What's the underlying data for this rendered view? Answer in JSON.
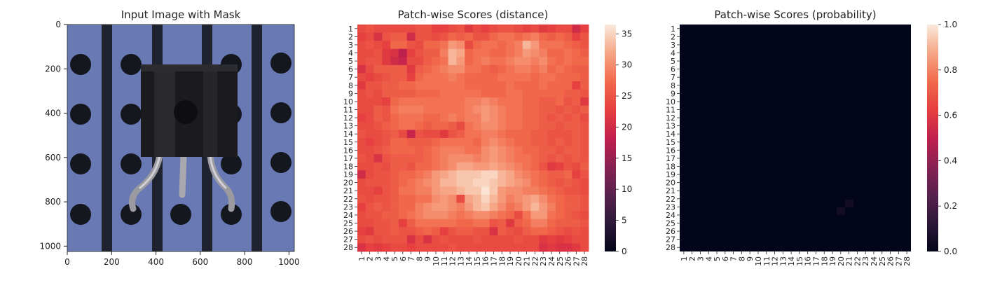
{
  "chart_data": [
    {
      "type": "image",
      "title": "Input Image with Mask",
      "xlim": [
        0,
        1024
      ],
      "ylim": [
        1024,
        0
      ],
      "x_ticks": [
        0,
        200,
        400,
        600,
        800,
        1000
      ],
      "y_ticks": [
        0,
        200,
        400,
        600,
        800,
        1000
      ]
    },
    {
      "type": "heatmap",
      "title": "Patch-wise Scores (distance)",
      "rows": [
        "1",
        "2",
        "3",
        "4",
        "5",
        "6",
        "7",
        "8",
        "9",
        "10",
        "11",
        "12",
        "13",
        "14",
        "15",
        "16",
        "17",
        "18",
        "19",
        "20",
        "21",
        "22",
        "23",
        "24",
        "25",
        "26",
        "27",
        "28"
      ],
      "cols": [
        "1",
        "2",
        "3",
        "4",
        "5",
        "6",
        "7",
        "8",
        "9",
        "10",
        "11",
        "12",
        "13",
        "14",
        "15",
        "16",
        "17",
        "18",
        "19",
        "20",
        "21",
        "22",
        "23",
        "24",
        "25",
        "26",
        "27",
        "28"
      ],
      "colorbar": {
        "min": 0,
        "max": 36.5,
        "ticks": [
          0,
          5,
          10,
          15,
          20,
          25,
          30,
          35
        ]
      },
      "colormap": "rocket",
      "values_note": "28x28 values in range ~17–36, brightest patches in centre (rows 17–23, cols 12–17)",
      "values": [
        [
          24,
          25,
          24,
          24,
          24,
          24,
          24,
          25,
          25,
          23,
          23,
          24,
          25,
          22,
          24,
          23,
          24,
          25,
          25,
          24,
          23,
          24,
          22,
          23,
          24,
          24,
          20,
          23
        ],
        [
          23,
          24,
          21,
          25,
          26,
          26,
          20,
          25,
          25,
          24,
          25,
          27,
          26,
          27,
          25,
          25,
          27,
          28,
          28,
          27,
          28,
          29,
          27,
          26,
          27,
          26,
          23,
          25
        ],
        [
          24,
          25,
          24,
          23,
          27,
          27,
          25,
          24,
          27,
          27,
          28,
          31,
          30,
          24,
          27,
          28,
          28,
          27,
          28,
          29,
          33,
          31,
          28,
          28,
          28,
          27,
          26,
          25
        ],
        [
          24,
          24,
          25,
          22,
          21,
          18,
          23,
          25,
          26,
          26,
          29,
          33,
          32,
          27,
          28,
          28,
          27,
          27,
          28,
          29,
          31,
          30,
          29,
          27,
          27,
          28,
          27,
          26
        ],
        [
          24,
          25,
          25,
          22,
          20,
          19,
          24,
          24,
          26,
          27,
          28,
          33,
          31,
          27,
          28,
          29,
          28,
          28,
          29,
          30,
          30,
          29,
          30,
          28,
          27,
          28,
          27,
          27
        ],
        [
          21,
          24,
          26,
          26,
          26,
          26,
          22,
          26,
          27,
          28,
          29,
          30,
          30,
          28,
          28,
          27,
          26,
          27,
          28,
          29,
          29,
          28,
          29,
          27,
          28,
          27,
          26,
          26
        ],
        [
          24,
          23,
          24,
          25,
          26,
          26,
          23,
          27,
          28,
          28,
          28,
          29,
          28,
          27,
          27,
          27,
          27,
          28,
          28,
          28,
          28,
          27,
          28,
          28,
          27,
          27,
          27,
          26
        ],
        [
          22,
          25,
          25,
          26,
          26,
          27,
          27,
          28,
          28,
          28,
          28,
          28,
          28,
          27,
          27,
          27,
          27,
          27,
          28,
          27,
          27,
          27,
          28,
          27,
          27,
          27,
          23,
          26
        ],
        [
          24,
          25,
          24,
          26,
          26,
          26,
          26,
          27,
          27,
          27,
          28,
          28,
          28,
          28,
          28,
          27,
          27,
          27,
          28,
          28,
          27,
          27,
          27,
          27,
          27,
          26,
          26,
          25
        ],
        [
          24,
          24,
          24,
          23,
          27,
          28,
          28,
          28,
          28,
          28,
          28,
          28,
          28,
          29,
          29,
          30,
          29,
          28,
          28,
          28,
          27,
          27,
          26,
          26,
          27,
          25,
          26,
          22
        ],
        [
          24,
          24,
          26,
          25,
          28,
          29,
          29,
          29,
          28,
          28,
          28,
          28,
          28,
          29,
          30,
          31,
          30,
          29,
          28,
          28,
          27,
          27,
          26,
          26,
          25,
          26,
          25,
          26
        ],
        [
          23,
          24,
          26,
          25,
          27,
          28,
          28,
          28,
          27,
          27,
          28,
          29,
          28,
          29,
          29,
          31,
          30,
          29,
          28,
          28,
          27,
          27,
          26,
          25,
          26,
          25,
          26,
          24
        ],
        [
          24,
          24,
          25,
          26,
          27,
          28,
          28,
          27,
          26,
          27,
          27,
          26,
          24,
          28,
          29,
          30,
          30,
          29,
          28,
          28,
          27,
          27,
          26,
          26,
          25,
          26,
          26,
          25
        ],
        [
          25,
          24,
          24,
          25,
          26,
          24,
          19,
          25,
          24,
          24,
          22,
          25,
          26,
          28,
          28,
          29,
          29,
          28,
          27,
          27,
          27,
          26,
          26,
          25,
          25,
          25,
          26,
          25
        ],
        [
          24,
          23,
          24,
          25,
          27,
          27,
          26,
          26,
          26,
          27,
          28,
          28,
          28,
          28,
          27,
          29,
          30,
          29,
          28,
          27,
          27,
          26,
          26,
          25,
          26,
          25,
          26,
          25
        ],
        [
          24,
          24,
          25,
          26,
          27,
          27,
          27,
          26,
          27,
          28,
          29,
          29,
          29,
          28,
          28,
          30,
          31,
          30,
          29,
          28,
          27,
          27,
          26,
          26,
          25,
          26,
          26,
          25
        ],
        [
          25,
          24,
          21,
          25,
          26,
          26,
          26,
          26,
          27,
          28,
          29,
          30,
          30,
          30,
          29,
          30,
          31,
          30,
          29,
          28,
          28,
          27,
          26,
          25,
          26,
          25,
          26,
          25
        ],
        [
          24,
          24,
          25,
          24,
          26,
          26,
          25,
          27,
          27,
          28,
          29,
          30,
          32,
          32,
          31,
          31,
          32,
          31,
          30,
          29,
          28,
          27,
          25,
          22,
          23,
          25,
          24,
          26
        ],
        [
          20,
          24,
          25,
          25,
          26,
          27,
          27,
          28,
          29,
          31,
          32,
          33,
          34,
          34,
          34,
          35,
          35,
          33,
          32,
          30,
          29,
          28,
          27,
          26,
          26,
          27,
          23,
          25
        ],
        [
          24,
          25,
          25,
          25,
          26,
          27,
          28,
          29,
          30,
          31,
          33,
          33,
          34,
          34,
          35,
          35,
          34,
          33,
          32,
          31,
          30,
          28,
          27,
          26,
          25,
          26,
          25,
          24
        ],
        [
          24,
          24,
          23,
          25,
          26,
          28,
          28,
          29,
          29,
          31,
          32,
          32,
          33,
          34,
          34,
          36,
          34,
          31,
          30,
          30,
          29,
          29,
          28,
          27,
          26,
          25,
          25,
          24
        ],
        [
          25,
          24,
          25,
          25,
          26,
          27,
          27,
          28,
          28,
          30,
          31,
          30,
          24,
          32,
          33,
          35,
          33,
          31,
          29,
          30,
          31,
          32,
          30,
          28,
          27,
          26,
          26,
          25
        ],
        [
          23,
          25,
          26,
          25,
          26,
          27,
          27,
          29,
          30,
          31,
          31,
          30,
          29,
          31,
          33,
          34,
          32,
          30,
          28,
          29,
          31,
          33,
          31,
          29,
          27,
          26,
          26,
          25
        ],
        [
          24,
          25,
          25,
          26,
          26,
          27,
          28,
          29,
          30,
          30,
          30,
          29,
          28,
          29,
          30,
          30,
          29,
          28,
          27,
          24,
          28,
          31,
          31,
          28,
          27,
          26,
          25,
          24
        ],
        [
          24,
          24,
          25,
          25,
          26,
          23,
          26,
          28,
          28,
          28,
          28,
          28,
          27,
          27,
          28,
          28,
          25,
          26,
          22,
          26,
          27,
          29,
          29,
          27,
          26,
          26,
          26,
          25
        ],
        [
          23,
          22,
          25,
          25,
          26,
          25,
          25,
          26,
          27,
          26,
          23,
          25,
          26,
          26,
          25,
          25,
          21,
          26,
          25,
          24,
          26,
          27,
          27,
          26,
          25,
          24,
          25,
          24
        ],
        [
          24,
          25,
          24,
          25,
          25,
          25,
          21,
          24,
          21,
          24,
          25,
          24,
          24,
          24,
          25,
          24,
          24,
          24,
          24,
          25,
          24,
          24,
          22,
          23,
          22,
          23,
          24,
          24
        ],
        [
          21,
          23,
          22,
          23,
          24,
          24,
          23,
          24,
          24,
          24,
          24,
          25,
          24,
          24,
          24,
          24,
          24,
          24,
          24,
          24,
          24,
          24,
          21,
          22,
          21,
          21,
          22,
          24
        ]
      ]
    },
    {
      "type": "heatmap",
      "title": "Patch-wise Scores (probability)",
      "rows": [
        "1",
        "2",
        "3",
        "4",
        "5",
        "6",
        "7",
        "8",
        "9",
        "10",
        "11",
        "12",
        "13",
        "14",
        "15",
        "16",
        "17",
        "18",
        "19",
        "20",
        "21",
        "22",
        "23",
        "24",
        "25",
        "26",
        "27",
        "28"
      ],
      "cols": [
        "1",
        "2",
        "3",
        "4",
        "5",
        "6",
        "7",
        "8",
        "9",
        "10",
        "11",
        "12",
        "13",
        "14",
        "15",
        "16",
        "17",
        "18",
        "19",
        "20",
        "21",
        "22",
        "23",
        "24",
        "25",
        "26",
        "27",
        "28"
      ],
      "colorbar": {
        "min": 0.0,
        "max": 1.0,
        "ticks": [
          0.0,
          0.2,
          0.4,
          0.6,
          0.8,
          1.0
        ]
      },
      "colormap": "rocket",
      "values_note": "all values ≈ 0 (near-black), faint traces up to ~0.03"
    }
  ]
}
